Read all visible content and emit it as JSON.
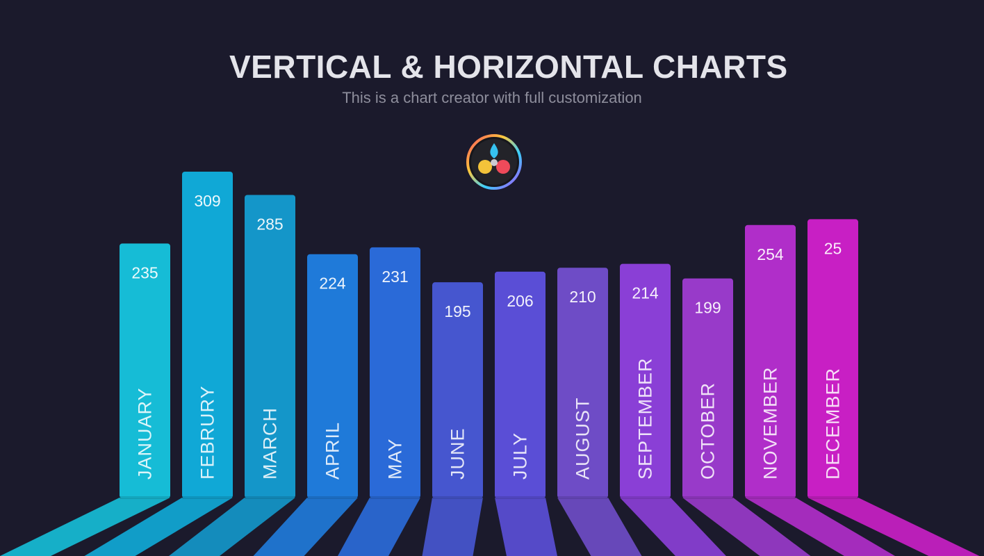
{
  "header": {
    "title": "VERTICAL & HORIZONTAL CHARTS",
    "subtitle": "This is a chart creator with full customization",
    "logo_icon": "davinci-resolve-logo-icon"
  },
  "chart_data": {
    "type": "bar",
    "title": "VERTICAL & HORIZONTAL CHARTS",
    "subtitle": "This is a chart creator with full customization",
    "categories": [
      "JANUARY",
      "FEBRURY",
      "MARCH",
      "APRIL",
      "MAY",
      "JUNE",
      "JULY",
      "AUGUST",
      "SEPTEMBER",
      "OCTOBER",
      "NOVEMBER",
      "DECEMBER"
    ],
    "values": [
      235,
      309,
      285,
      224,
      231,
      195,
      206,
      210,
      214,
      199,
      254,
      25
    ],
    "value_labels": [
      "235",
      "309",
      "285",
      "224",
      "231",
      "195",
      "206",
      "210",
      "214",
      "199",
      "254",
      "25"
    ],
    "colors": [
      "#16bcd6",
      "#10a8d6",
      "#1496c9",
      "#1f7ad9",
      "#2a6ad8",
      "#4656cf",
      "#5a4ed6",
      "#6e4cc6",
      "#8a3fd6",
      "#983ac9",
      "#b02ec9",
      "#c81fc4"
    ],
    "xlabel": "",
    "ylabel": "",
    "grid": false,
    "legend": "none"
  }
}
